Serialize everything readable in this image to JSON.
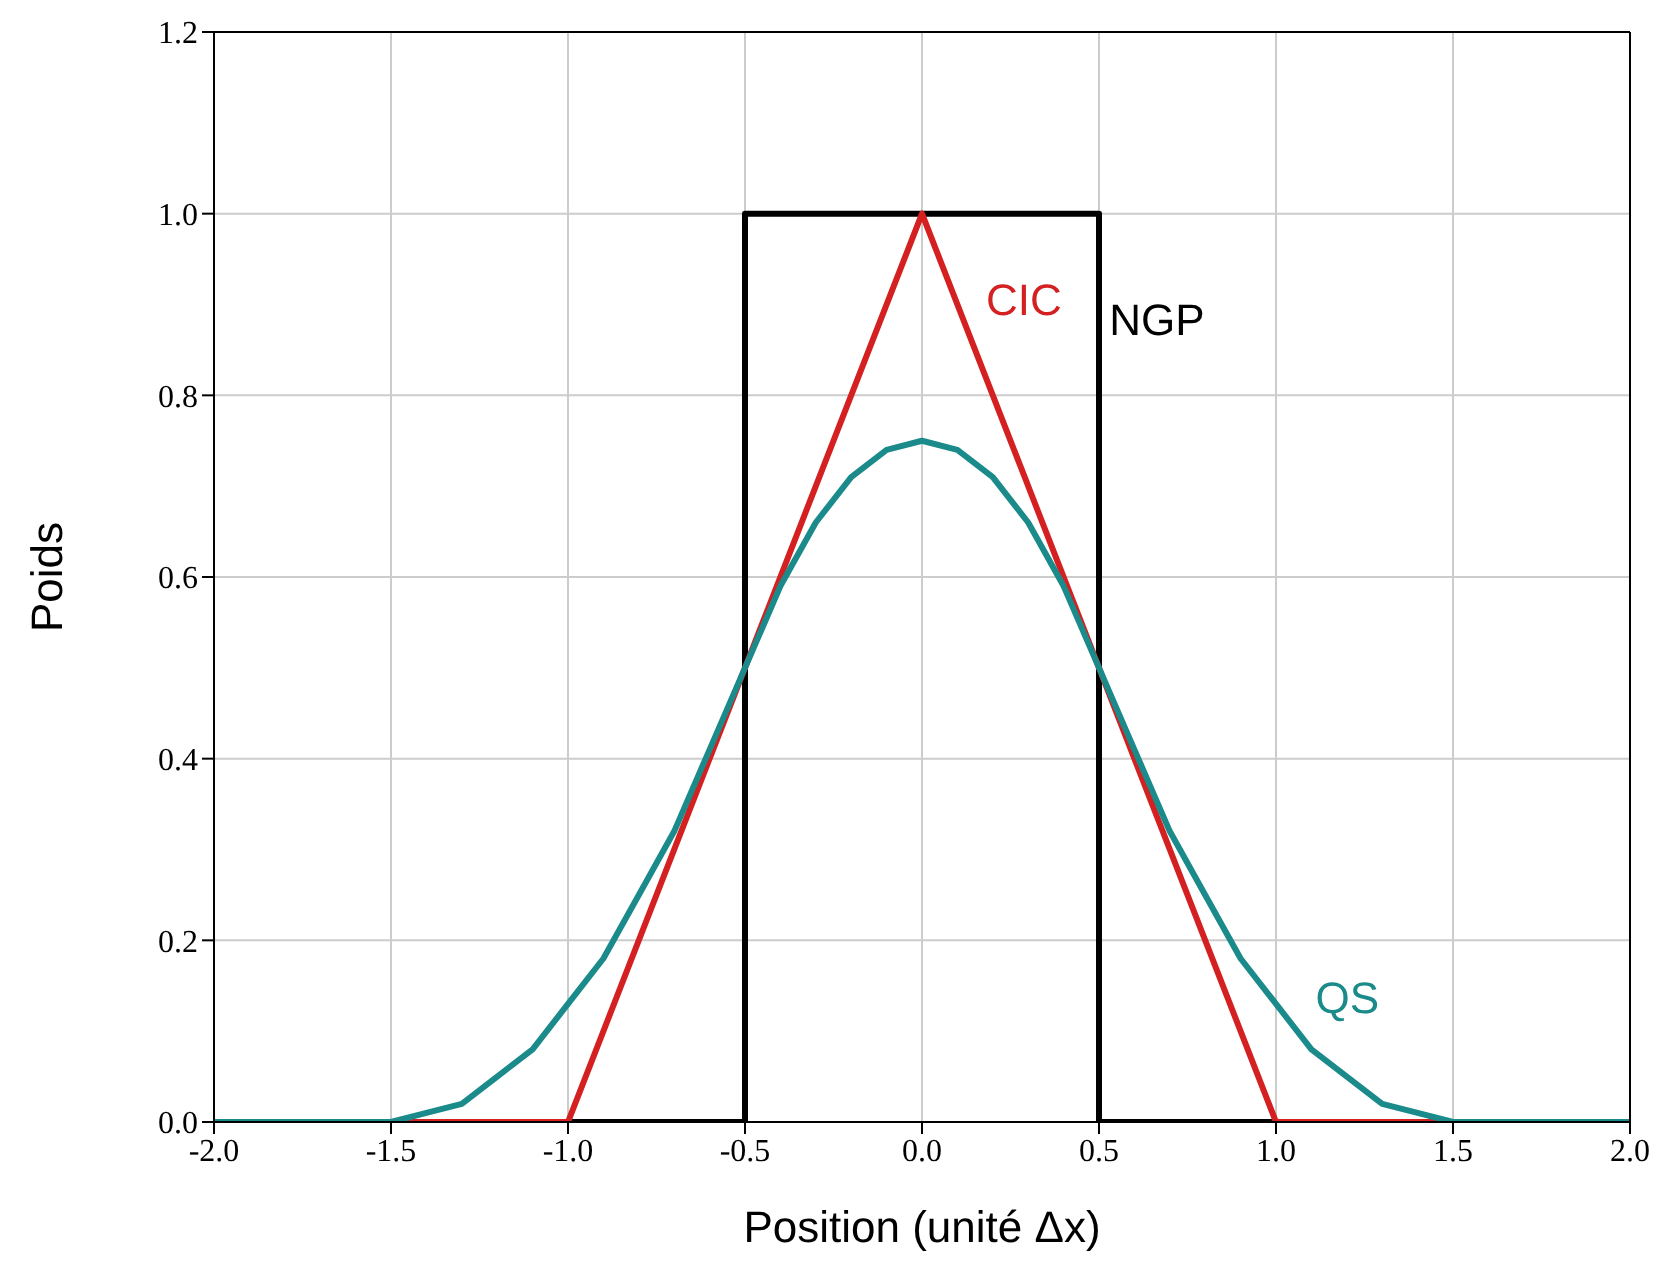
{
  "chart_data": {
    "type": "line",
    "xlabel": "Position (unité Δx)",
    "ylabel": "Poids",
    "xlim": [
      -2,
      2
    ],
    "ylim": [
      0,
      1.2
    ],
    "xticks": [
      {
        "value": -2,
        "label": "-2.0"
      },
      {
        "value": -1.5,
        "label": "-1.5"
      },
      {
        "value": -1,
        "label": "-1.0"
      },
      {
        "value": -0.5,
        "label": "-0.5"
      },
      {
        "value": 0,
        "label": "0.0"
      },
      {
        "value": 0.5,
        "label": "0.5"
      },
      {
        "value": 1,
        "label": "1.0"
      },
      {
        "value": 1.5,
        "label": "1.5"
      },
      {
        "value": 2,
        "label": "2.0"
      }
    ],
    "yticks": [
      {
        "value": 0,
        "label": "0.0"
      },
      0.2,
      0.4,
      0.6,
      0.8,
      {
        "value": 1,
        "label": "1.0"
      },
      1.2
    ],
    "grid": true,
    "legend": false,
    "marker": "none",
    "line_style": "solid",
    "series": [
      {
        "name": "NGP",
        "color": "#000000",
        "x": [
          -2,
          -0.5,
          -0.5,
          0.5,
          0.5,
          2
        ],
        "values": [
          0,
          0,
          1,
          1,
          0,
          0
        ]
      },
      {
        "name": "CIC",
        "color": "#d42020",
        "x": [
          -2,
          -1,
          0,
          1,
          2
        ],
        "values": [
          0,
          0,
          1,
          0,
          0
        ]
      },
      {
        "name": "QS",
        "color": "#1a8a8a",
        "x": [
          -2,
          -1.5,
          -1.4,
          -1.3,
          -1.2,
          -1.1,
          -1.0,
          -0.9,
          -0.8,
          -0.7,
          -0.6,
          -0.5,
          -0.4,
          -0.3,
          -0.2,
          -0.1,
          0,
          0.1,
          0.2,
          0.3,
          0.4,
          0.5,
          0.6,
          0.7,
          0.8,
          0.9,
          1.0,
          1.1,
          1.2,
          1.3,
          1.4,
          1.5,
          2
        ],
        "values": [
          0,
          0,
          0.01,
          0.02,
          0.05,
          0.08,
          0.13,
          0.18,
          0.25,
          0.32,
          0.41,
          0.5,
          0.59,
          0.66,
          0.71,
          0.74,
          0.75,
          0.74,
          0.71,
          0.66,
          0.59,
          0.5,
          0.41,
          0.32,
          0.25,
          0.18,
          0.13,
          0.08,
          0.05,
          0.02,
          0.01,
          0,
          0
        ]
      }
    ]
  }
}
